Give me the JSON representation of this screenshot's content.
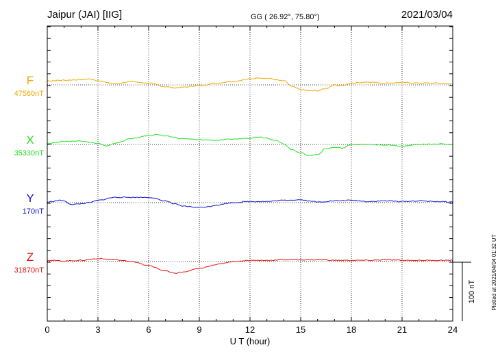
{
  "header": {
    "station": "Jaipur (JAI)  [IIG]",
    "coords": "GG ( 26.92°,  75.80°)",
    "date": "2021/03/04"
  },
  "footer": {
    "plotted_note": "Plotted at 2021/04/04 01:32 UT",
    "scale_label": "100 nT"
  },
  "chart_data": {
    "type": "line",
    "xlabel": "U T (hour)",
    "xlim": [
      0,
      24
    ],
    "x_ticks": [
      0,
      3,
      6,
      9,
      12,
      15,
      18,
      21,
      24
    ],
    "scale_nT": 100,
    "grid": true,
    "series": [
      {
        "name": "F",
        "baseline_label": "47560nT",
        "color": "#f0a800",
        "x": [
          0,
          1,
          2,
          2.5,
          3,
          4,
          5,
          5.5,
          6,
          7,
          7.5,
          8,
          9,
          10,
          11,
          12,
          12.5,
          13,
          14,
          14.5,
          15,
          15.5,
          16,
          16.5,
          17,
          17.5,
          18,
          19,
          20,
          21,
          22,
          23,
          24
        ],
        "y": [
          7,
          8,
          9,
          10,
          7,
          2,
          6,
          4,
          3,
          -3,
          -5,
          -4,
          -1,
          3,
          6,
          10,
          12,
          11,
          7,
          -3,
          -8,
          -10,
          -10,
          -6,
          0,
          -1,
          3,
          5,
          3,
          4,
          3,
          3,
          2
        ]
      },
      {
        "name": "X",
        "baseline_label": "35330nT",
        "color": "#22e022",
        "x": [
          0,
          1,
          2,
          3,
          3.5,
          4,
          5,
          6,
          6.5,
          7,
          8,
          9,
          10,
          11,
          12,
          12.5,
          13,
          13.5,
          14,
          14.5,
          15,
          15.5,
          16,
          16.5,
          17,
          17.5,
          18,
          19,
          20,
          21,
          22,
          23,
          24
        ],
        "y": [
          2,
          5,
          6,
          2,
          -3,
          2,
          10,
          15,
          17,
          14,
          10,
          8,
          7,
          9,
          11,
          13,
          11,
          7,
          1,
          -9,
          -14,
          -19,
          -17,
          -7,
          -5,
          -6,
          0,
          0,
          -1,
          -3,
          0,
          1,
          0
        ]
      },
      {
        "name": "Y",
        "baseline_label": "170nT",
        "color": "#1010cc",
        "x": [
          0,
          0.8,
          1.5,
          2,
          2.5,
          3,
          4,
          5,
          6,
          7,
          7.5,
          8,
          9,
          9.5,
          10,
          11,
          12,
          13,
          14,
          15,
          15.5,
          16,
          17,
          18,
          19,
          20,
          21,
          22,
          23,
          24
        ],
        "y": [
          1,
          4,
          -3,
          -2,
          0,
          4,
          9,
          9,
          9,
          3,
          -2,
          -6,
          -8,
          -7,
          -4,
          0,
          2,
          2,
          4,
          5,
          3,
          1,
          3,
          4,
          2,
          3,
          2,
          3,
          2,
          1
        ]
      },
      {
        "name": "Z",
        "baseline_label": "31870nT",
        "color": "#e01010",
        "x": [
          0,
          1,
          2,
          3,
          4,
          5,
          6,
          7,
          7.5,
          8,
          9,
          10,
          11,
          12,
          13,
          14,
          15,
          16,
          17,
          18,
          19,
          20,
          21,
          22,
          23,
          24
        ],
        "y": [
          2,
          1,
          2,
          5,
          3,
          0,
          -7,
          -16,
          -20,
          -18,
          -12,
          -5,
          0,
          2,
          2,
          3,
          3,
          3,
          2,
          2,
          2,
          3,
          2,
          2,
          2,
          2
        ]
      }
    ]
  }
}
